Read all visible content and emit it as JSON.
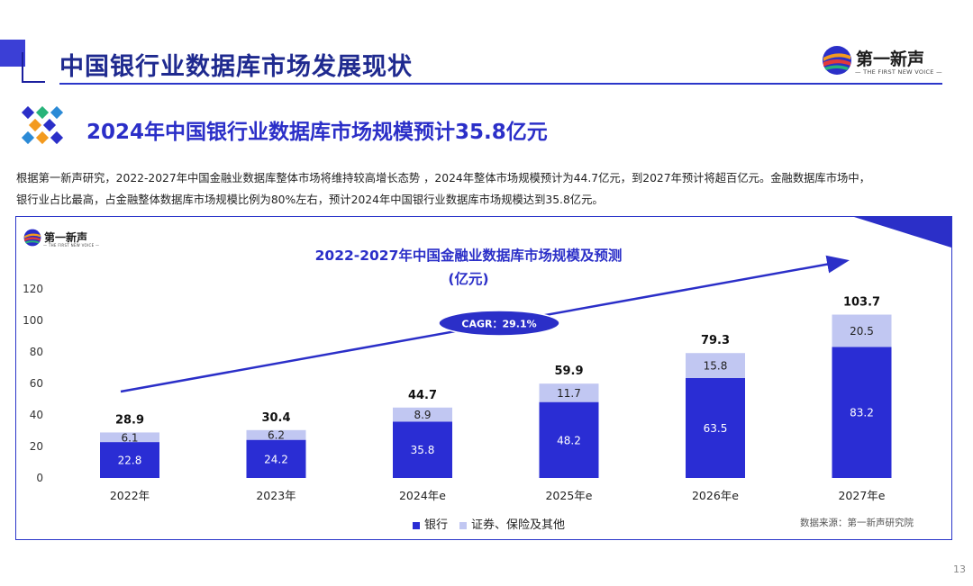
{
  "header": {
    "title": "中国银行业数据库市场发展现状"
  },
  "logo": {
    "name": "第一新声",
    "tagline": "— THE FIRST NEW VOICE —"
  },
  "section": {
    "title": "2024年中国银行业数据库市场规模预计35.8亿元"
  },
  "paragraph": {
    "line1": "根据第一新声研究，2022-2027年中国金融业数据库整体市场将维持较高增长态势 ，2024年整体市场规模预计为44.7亿元，到2027年预计将超百亿元。金融数据库市场中，",
    "line2": "银行业占比最高，占金融整体数据库市场规模比例为80%左右，预计2024年中国银行业数据库市场规模达到35.8亿元。"
  },
  "chart_data": {
    "type": "bar",
    "stacked": true,
    "title_line1": "2022-2027年中国金融业数据库市场规模及预测",
    "title_line2": "(亿元)",
    "categories": [
      "2022年",
      "2023年",
      "2024年e",
      "2025年e",
      "2026年e",
      "2027年e"
    ],
    "series": [
      {
        "name": "银行",
        "values": [
          22.8,
          24.2,
          35.8,
          48.2,
          63.5,
          83.2
        ],
        "color": "#2a2dd4"
      },
      {
        "name": "证券、保险及其他",
        "values": [
          6.1,
          6.2,
          8.9,
          11.7,
          15.8,
          20.5
        ],
        "color": "#c1c7f2"
      }
    ],
    "totals": [
      "28.9",
      "30.4",
      "44.7",
      "59.9",
      "79.3",
      "103.7"
    ],
    "y_ticks": [
      "0",
      "20",
      "40",
      "60",
      "80",
      "100",
      "120"
    ],
    "ylim": [
      0,
      120
    ],
    "grid": false,
    "legend_position": "bottom-center",
    "annotation": "CAGR：29.1%"
  },
  "source_note": "数据来源：第一新声研究院",
  "page_number": "13",
  "colors": {
    "accent": "#2b2fc8",
    "bank": "#2a2dd4",
    "other": "#c1c7f2",
    "rule": "#2b36c9"
  }
}
